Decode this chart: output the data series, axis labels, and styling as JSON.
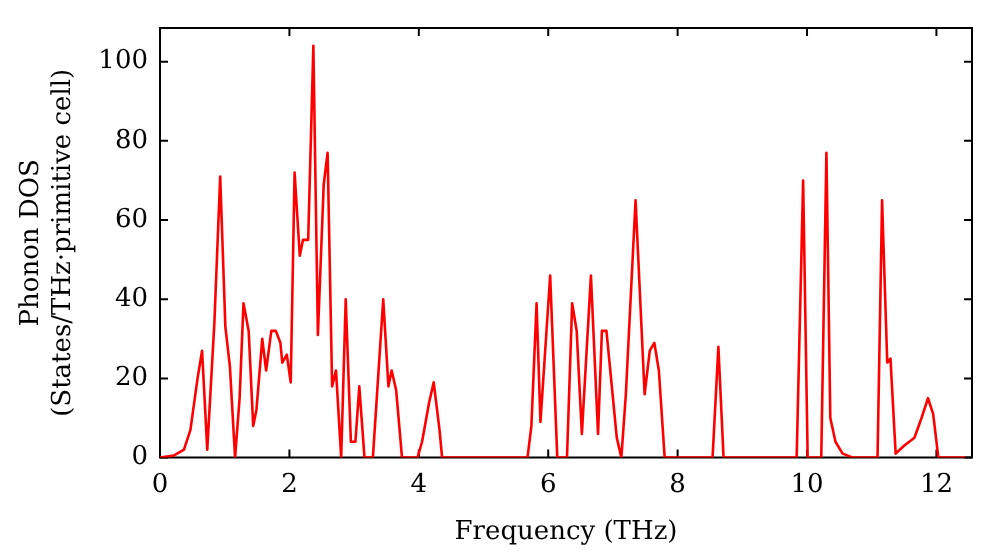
{
  "chart_data": {
    "type": "line",
    "xlabel": "Frequency (THz)",
    "ylabel": "Phonon DOS\n(States/THz·primitive cell)",
    "xlim": [
      0,
      12.55
    ],
    "ylim": [
      0,
      108.5
    ],
    "xticks": [
      0,
      2,
      4,
      6,
      8,
      10,
      12
    ],
    "yticks": [
      0,
      20,
      40,
      60,
      80,
      100
    ],
    "grid": false,
    "legend": false,
    "marker": "none",
    "line_style": "solid",
    "series": [
      {
        "color": "#ff0000",
        "x": [
          0,
          0.21,
          0.37,
          0.47,
          0.58,
          0.65,
          0.73,
          0.84,
          0.93,
          1.01,
          1.08,
          1.16,
          1.23,
          1.29,
          1.37,
          1.44,
          1.49,
          1.58,
          1.64,
          1.72,
          1.79,
          1.86,
          1.89,
          1.96,
          2.02,
          2.08,
          2.16,
          2.21,
          2.29,
          2.37,
          2.44,
          2.53,
          2.59,
          2.66,
          2.72,
          2.8,
          2.87,
          2.95,
          3.02,
          3.08,
          3.16,
          3.29,
          3.45,
          3.53,
          3.58,
          3.65,
          3.74,
          3.98,
          4.05,
          4.16,
          4.23,
          4.32,
          4.36,
          5.68,
          5.74,
          5.82,
          5.88,
          6.03,
          6.14,
          6.29,
          6.37,
          6.44,
          6.52,
          6.66,
          6.77,
          6.83,
          6.9,
          7.06,
          7.13,
          7.2,
          7.35,
          7.49,
          7.57,
          7.64,
          7.71,
          7.8,
          8.54,
          8.63,
          8.71,
          9.84,
          9.94,
          10.01,
          10.22,
          10.3,
          10.36,
          10.44,
          10.55,
          10.71,
          11.09,
          11.16,
          11.24,
          11.29,
          11.37,
          11.5,
          11.66,
          11.77,
          11.87,
          11.95,
          12.03,
          12.45
        ],
        "values": [
          0,
          0.5,
          2,
          7,
          20,
          27,
          2,
          34,
          71,
          33,
          23,
          0,
          15,
          39,
          32,
          8,
          12,
          30,
          22,
          32,
          32,
          29,
          24,
          26,
          19,
          72,
          51,
          55,
          55,
          104,
          31,
          69,
          77,
          18,
          22,
          0,
          40,
          4,
          4,
          18,
          0,
          0,
          40,
          18,
          22,
          17,
          0,
          0,
          4,
          14,
          19,
          7,
          0,
          0,
          8,
          39,
          9,
          46,
          0,
          0,
          39,
          32,
          6,
          46,
          6,
          32,
          32,
          5,
          0,
          16,
          65,
          16,
          27,
          29,
          22,
          0,
          0,
          28,
          0,
          0,
          70,
          0,
          0,
          77,
          10,
          4,
          1,
          0,
          0,
          65,
          24,
          25,
          1,
          3,
          5,
          10,
          15,
          11,
          0,
          0
        ]
      }
    ]
  }
}
